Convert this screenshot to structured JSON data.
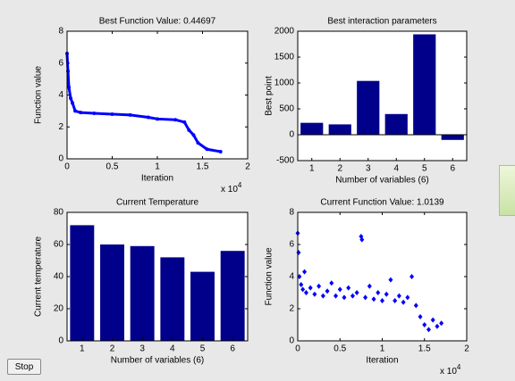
{
  "stop_button": "Stop",
  "chart_data": [
    {
      "type": "line",
      "title": "Best Function Value: 0.44697",
      "x_label": "Iteration",
      "y_label": "Function value",
      "x_exponent": {
        "base": "x 10",
        "power": "4"
      },
      "x": [
        0,
        100,
        200,
        400,
        600,
        900,
        1500,
        3000,
        5000,
        7000,
        9000,
        10000,
        12000,
        13000,
        13500,
        14000,
        14500,
        15500,
        17000
      ],
      "values": [
        6.6,
        5.5,
        4.5,
        3.8,
        3.5,
        3.0,
        2.9,
        2.85,
        2.8,
        2.75,
        2.6,
        2.5,
        2.45,
        2.3,
        1.8,
        1.5,
        1.0,
        0.6,
        0.45
      ],
      "color": "#0000ff",
      "xlim": [
        0,
        20000
      ],
      "xticks": [
        0,
        {
          "value": 5000,
          "label": "0.5"
        },
        {
          "value": 10000,
          "label": "1"
        },
        {
          "value": 15000,
          "label": "1.5"
        },
        {
          "value": 20000,
          "label": "2"
        }
      ],
      "ylim": [
        0,
        8
      ],
      "yticks": [
        0,
        2,
        4,
        6,
        8
      ]
    },
    {
      "type": "bar",
      "title": "Best interaction parameters",
      "x_label": "Number of variables (6)",
      "y_label": "Best point",
      "categories": [
        "1",
        "2",
        "3",
        "4",
        "5",
        "6"
      ],
      "values": [
        230,
        200,
        1040,
        400,
        1940,
        -100
      ],
      "color": "#00008b",
      "ylim": [
        -500,
        2000
      ],
      "yticks": [
        -500,
        0,
        500,
        1000,
        1500,
        2000
      ]
    },
    {
      "type": "bar",
      "title": "Current Temperature",
      "x_label": "Number of variables (6)",
      "y_label": "Current temperature",
      "categories": [
        "1",
        "2",
        "3",
        "4",
        "5",
        "6"
      ],
      "values": [
        72,
        60,
        59,
        52,
        43,
        56
      ],
      "color": "#00008b",
      "ylim": [
        0,
        80
      ],
      "yticks": [
        0,
        20,
        40,
        60,
        80
      ]
    },
    {
      "type": "scatter",
      "title": "Current Function Value: 1.0139",
      "x_label": "Iteration",
      "y_label": "Function value",
      "x_exponent": {
        "base": "x 10",
        "power": "4"
      },
      "x": [
        0,
        100,
        200,
        400,
        600,
        800,
        1000,
        1500,
        2000,
        2500,
        3000,
        3500,
        4000,
        4500,
        5000,
        5500,
        6000,
        6500,
        7000,
        7500,
        7600,
        8000,
        8500,
        9000,
        9500,
        10000,
        10500,
        11000,
        11500,
        12000,
        12500,
        13000,
        13500,
        14000,
        14500,
        15000,
        15500,
        16000,
        16500,
        17000
      ],
      "values": [
        6.7,
        5.5,
        4.0,
        3.5,
        3.2,
        4.3,
        3.0,
        3.3,
        2.9,
        3.4,
        2.8,
        3.1,
        3.6,
        2.8,
        3.2,
        2.7,
        3.3,
        2.8,
        3.0,
        6.5,
        6.3,
        2.7,
        3.4,
        2.6,
        3.0,
        2.5,
        2.9,
        3.8,
        2.5,
        2.8,
        2.4,
        2.7,
        4.0,
        2.2,
        1.5,
        1.0,
        0.7,
        1.3,
        0.9,
        1.1
      ],
      "color": "#0000ff",
      "xlim": [
        0,
        20000
      ],
      "xticks": [
        0,
        {
          "value": 5000,
          "label": "0.5"
        },
        {
          "value": 10000,
          "label": "1"
        },
        {
          "value": 15000,
          "label": "1.5"
        },
        {
          "value": 20000,
          "label": "2"
        }
      ],
      "ylim": [
        0,
        8
      ],
      "yticks": [
        0,
        2,
        4,
        6,
        8
      ]
    }
  ]
}
